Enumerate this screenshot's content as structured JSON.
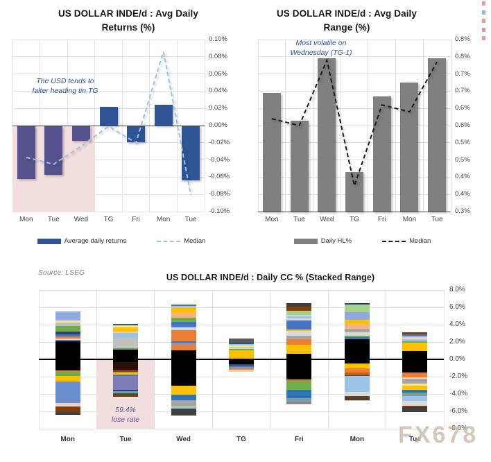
{
  "watermarks": {
    "main": "FX678",
    "edge_marks": [
      "#E08A8A",
      "#7BA7D7",
      "#E08A8A",
      "#D98585",
      "#E08A8A"
    ]
  },
  "chart_data": [
    {
      "type": "bar",
      "title": "US DOLLAR INDE/d : Avg Daily\nReturns (%)",
      "categories": [
        "Mon",
        "Tue",
        "Wed",
        "TG",
        "Fri",
        "Mon",
        "Tue"
      ],
      "series": [
        {
          "name": "Average daily returns",
          "type": "bar",
          "color": "#2F5597",
          "values": [
            -0.062,
            -0.057,
            -0.018,
            0.022,
            -0.019,
            0.024,
            -0.064
          ]
        },
        {
          "name": "Median",
          "type": "dashed-line",
          "color": "#9DC3E6",
          "values": [
            -0.037,
            -0.045,
            -0.024,
            -0.001,
            -0.02,
            0.086,
            -0.081
          ]
        }
      ],
      "ylim": [
        -0.1,
        0.1
      ],
      "ylabels": [
        "0.10%",
        "0.08%",
        "0.06%",
        "0.04%",
        "0.02%",
        "0.00%",
        "-0.02%",
        "-0.04%",
        "-0.06%",
        "-0.08%",
        "-0.10%"
      ],
      "annotation_text": "The USD tends to\nfalter heading tin TG",
      "highlight": {
        "span": [
          0,
          3
        ],
        "from_value": 0,
        "to_value": -0.1,
        "color": "#F3DEDF",
        "bar_color": "#55518E"
      },
      "legend": [
        {
          "label": "Average daily returns"
        },
        {
          "label": "Median"
        }
      ],
      "grid": true,
      "legend_position": "bottom"
    },
    {
      "type": "bar",
      "title": "US DOLLAR INDE/d : Avg Daily\nRange (%)",
      "categories": [
        "Mon",
        "Tue",
        "Wed",
        "TG",
        "Fri",
        "Mon",
        "Tue"
      ],
      "series": [
        {
          "name": "Daily HL%",
          "type": "bar",
          "color": "#808080",
          "values": [
            0.645,
            0.565,
            0.745,
            0.415,
            0.635,
            0.675,
            0.745
          ]
        },
        {
          "name": "Median",
          "type": "dashed-line",
          "color": "#1A1A1A",
          "values": [
            0.57,
            0.55,
            0.74,
            0.375,
            0.61,
            0.59,
            0.735
          ]
        }
      ],
      "ylim": [
        0.3,
        0.8
      ],
      "ylabels": [
        "0.8%",
        "0.8%",
        "0.7%",
        "0.7%",
        "0.6%",
        "0.6%",
        "0.5%",
        "0.5%",
        "0.4%",
        "0.4%",
        "0.3%"
      ],
      "annotation_text": "Most volatile on\nWednesday (TG-1)",
      "legend": [
        {
          "label": "Daily HL%"
        },
        {
          "label": "Median"
        }
      ],
      "grid": true,
      "legend_position": "bottom"
    },
    {
      "type": "stacked-bar",
      "title": "US DOLLAR INDE/d : Daily CC % (Stacked Range)",
      "source": "Source: LSEG",
      "categories": [
        "Mon",
        "Tue",
        "Wed",
        "TG",
        "Fri",
        "Mon",
        "Tue"
      ],
      "ylim": [
        -8,
        8
      ],
      "ylabels": [
        "8.0%",
        "6.0%",
        "4.0%",
        "2.0%",
        "0.0%",
        "-2.0%",
        "-4.0%",
        "-6.0%",
        "-8.0%"
      ],
      "annotation_text": "59.4%\nlose rate",
      "highlight": {
        "span": [
          1,
          2
        ],
        "from_value": 0,
        "to_value": -8,
        "color": "#F3DEDF"
      },
      "grid": true,
      "bars": [
        {
          "pos": [
            [
              "#000000",
              2.1
            ],
            [
              "#4472C4",
              0.15
            ],
            [
              "#F8CBAD",
              0.12
            ],
            [
              "#ED7D31",
              0.25
            ],
            [
              "#4472C4",
              0.25
            ],
            [
              "#264478",
              0.35
            ],
            [
              "#70AD47",
              0.6
            ],
            [
              "#BFBFBF",
              0.45
            ],
            [
              "#FFE699",
              0.2
            ],
            [
              "#8FAADC",
              1.03
            ]
          ],
          "neg": [
            [
              "#000000",
              1.25
            ],
            [
              "#ED7D31",
              0.2
            ],
            [
              "#70AD47",
              0.5
            ],
            [
              "#FFC000",
              0.6
            ],
            [
              "#698ED0",
              2.5
            ],
            [
              "#F8CBAD",
              0.25
            ],
            [
              "#D9D9D9",
              0.15
            ],
            [
              "#843C0C",
              0.6
            ],
            [
              "#404040",
              0.35
            ]
          ]
        },
        {
          "pos": [
            [
              "#000000",
              1.15
            ],
            [
              "#70AD47",
              0.12
            ],
            [
              "#BFBFBF",
              1.2
            ],
            [
              "#9DC3E6",
              0.55
            ],
            [
              "#F8CBAD",
              0.15
            ],
            [
              "#FFC000",
              0.5
            ],
            [
              "#FFE699",
              0.25
            ],
            [
              "#255E69",
              0.13
            ]
          ],
          "neg": [
            [
              "#000000",
              0.3
            ],
            [
              "#2B0F0A",
              0.9
            ],
            [
              "#843C0C",
              0.2
            ],
            [
              "#7F7F7F",
              0.15
            ],
            [
              "#FFC000",
              0.2
            ],
            [
              "#4472C4",
              0.2
            ],
            [
              "#7D7BB8",
              1.55
            ],
            [
              "#264478",
              0.2
            ],
            [
              "#8497B0",
              0.2
            ],
            [
              "#375623",
              0.25
            ],
            [
              "#843C0C",
              0.2
            ]
          ]
        },
        {
          "pos": [
            [
              "#000000",
              1.05
            ],
            [
              "#ED7D31",
              0.65
            ],
            [
              "#8497B0",
              0.2
            ],
            [
              "#4472C4",
              0.15
            ],
            [
              "#ED7D31",
              1.3
            ],
            [
              "#CFD5EA",
              0.25
            ],
            [
              "#9DC3E6",
              0.2
            ],
            [
              "#4472C4",
              0.55
            ],
            [
              "#70AD47",
              0.45
            ],
            [
              "#F4B183",
              0.6
            ],
            [
              "#FFC000",
              0.6
            ],
            [
              "#9DC3E6",
              0.15
            ],
            [
              "#4472C4",
              0.2
            ]
          ],
          "neg": [
            [
              "#000000",
              3.05
            ],
            [
              "#FFC000",
              1.05
            ],
            [
              "#2E75B6",
              0.6
            ],
            [
              "#A5A5A5",
              0.65
            ],
            [
              "#A9D18E",
              0.15
            ],
            [
              "#9DC3E6",
              0.2
            ],
            [
              "#404040",
              0.8
            ]
          ]
        },
        {
          "pos": [
            [
              "#000000",
              0.1
            ],
            [
              "#FFC000",
              0.95
            ],
            [
              "#70AD47",
              0.13
            ],
            [
              "#D9D9D9",
              0.15
            ],
            [
              "#A9D18E",
              0.12
            ],
            [
              "#FFE699",
              0.15
            ],
            [
              "#9DC3E6",
              0.2
            ],
            [
              "#255E69",
              0.15
            ],
            [
              "#595959",
              0.45
            ]
          ],
          "neg": [
            [
              "#000000",
              0.55
            ],
            [
              "#264478",
              0.15
            ],
            [
              "#4472C4",
              0.2
            ],
            [
              "#8497B0",
              0.15
            ],
            [
              "#ED7D31",
              0.15
            ],
            [
              "#F8CBAD",
              0.2
            ]
          ]
        },
        {
          "pos": [
            [
              "#000000",
              0.65
            ],
            [
              "#FFC000",
              1.05
            ],
            [
              "#ED7D31",
              0.6
            ],
            [
              "#A5A5A5",
              0.45
            ],
            [
              "#D9D9D9",
              0.5
            ],
            [
              "#FFC000",
              0.2
            ],
            [
              "#4472C4",
              1.05
            ],
            [
              "#D9D9D9",
              0.25
            ],
            [
              "#9DC3E6",
              0.2
            ],
            [
              "#CFD5EA",
              0.2
            ],
            [
              "#A9D18E",
              0.45
            ],
            [
              "#843C0C",
              0.45
            ],
            [
              "#404040",
              0.4
            ]
          ],
          "neg": [
            [
              "#000000",
              2.35
            ],
            [
              "#ED7D31",
              0.15
            ],
            [
              "#70AD47",
              1.05
            ],
            [
              "#2E75B6",
              0.95
            ],
            [
              "#8497B0",
              0.45
            ],
            [
              "#7F7F7F",
              0.15
            ],
            [
              "#F4B183",
              0.1
            ]
          ]
        },
        {
          "pos": [
            [
              "#000000",
              2.35
            ],
            [
              "#4472C4",
              0.2
            ],
            [
              "#70AD47",
              0.15
            ],
            [
              "#D9D9D9",
              0.4
            ],
            [
              "#A5A5A5",
              0.45
            ],
            [
              "#F4B183",
              0.5
            ],
            [
              "#FFC000",
              0.55
            ],
            [
              "#8FAADC",
              0.85
            ],
            [
              "#A9D18E",
              0.85
            ],
            [
              "#264478",
              0.2
            ]
          ],
          "neg": [
            [
              "#000000",
              0.5
            ],
            [
              "#FFC000",
              0.55
            ],
            [
              "#ED7D31",
              0.5
            ],
            [
              "#C55A11",
              0.25
            ],
            [
              "#255E69",
              0.15
            ],
            [
              "#9DC3E6",
              1.8
            ],
            [
              "#D9D9D9",
              0.5
            ],
            [
              "#843C0C",
              0.15
            ],
            [
              "#404040",
              0.3
            ],
            [
              "#F8CBAD",
              0.1
            ]
          ]
        },
        {
          "pos": [
            [
              "#000000",
              0.95
            ],
            [
              "#FFC000",
              0.95
            ],
            [
              "#70AD47",
              0.15
            ],
            [
              "#9DC3E6",
              0.25
            ],
            [
              "#D9D9D9",
              0.2
            ],
            [
              "#F8CBAD",
              0.15
            ],
            [
              "#4472C4",
              0.25
            ],
            [
              "#843C0C",
              0.2
            ]
          ],
          "neg": [
            [
              "#000000",
              1.55
            ],
            [
              "#ED7D31",
              0.5
            ],
            [
              "#F8CBAD",
              0.2
            ],
            [
              "#A5A5A5",
              0.55
            ],
            [
              "#FFE699",
              0.2
            ],
            [
              "#FFC000",
              0.5
            ],
            [
              "#2E75B6",
              0.3
            ],
            [
              "#70AD47",
              0.2
            ],
            [
              "#8497B0",
              0.2
            ],
            [
              "#9DC3E6",
              0.6
            ],
            [
              "#D9D9D9",
              0.55
            ],
            [
              "#843C0C",
              0.2
            ],
            [
              "#404040",
              0.55
            ]
          ]
        }
      ]
    }
  ]
}
